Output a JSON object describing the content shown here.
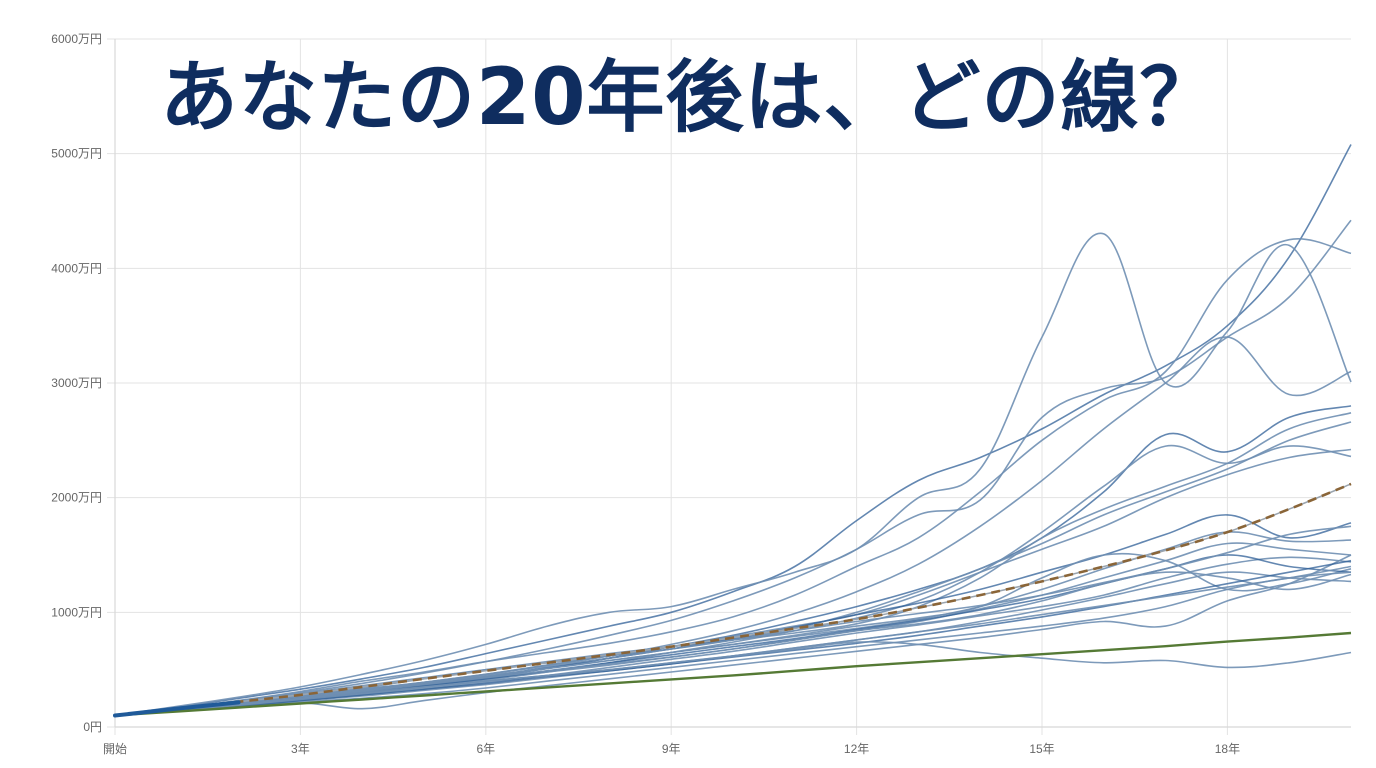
{
  "title": "あなたの20年後は、どの線？",
  "colors": {
    "title": "#0f2d5f",
    "simulation_line": "#6f8fb3",
    "simulation_line_dark": "#2f5f97",
    "median_dashed": "#8a6538",
    "median_under": "#9aa4ae",
    "principal_line": "#557a35",
    "grid": "#e3e3e3",
    "tick_text": "#666666"
  },
  "chart_data": {
    "type": "line",
    "title": "あなたの20年後は、どの線？",
    "xlabel": "",
    "ylabel": "",
    "x": [
      0,
      1,
      2,
      3,
      4,
      5,
      6,
      7,
      8,
      9,
      10,
      11,
      12,
      13,
      14,
      15,
      16,
      17,
      18,
      19,
      20
    ],
    "x_tick_labels": [
      {
        "x": 0,
        "label": "開始"
      },
      {
        "x": 3,
        "label": "3年"
      },
      {
        "x": 6,
        "label": "6年"
      },
      {
        "x": 9,
        "label": "9年"
      },
      {
        "x": 12,
        "label": "12年"
      },
      {
        "x": 15,
        "label": "15年"
      },
      {
        "x": 18,
        "label": "18年"
      }
    ],
    "y_tick_labels": [
      {
        "y": 0,
        "label": "0円"
      },
      {
        "y": 1000,
        "label": "1000万円"
      },
      {
        "y": 2000,
        "label": "2000万円"
      },
      {
        "y": 3000,
        "label": "3000万円"
      },
      {
        "y": 4000,
        "label": "4000万円"
      },
      {
        "y": 5000,
        "label": "5000万円"
      },
      {
        "y": 6000,
        "label": "6000万円"
      }
    ],
    "xlim": [
      0,
      20
    ],
    "ylim": [
      0,
      6000
    ],
    "y_unit": "万円",
    "grid": true,
    "legend": null,
    "series": [
      {
        "name": "sim-01",
        "style": "simulation",
        "values": [
          100,
          170,
          250,
          330,
          420,
          520,
          640,
          760,
          880,
          1000,
          1180,
          1400,
          1800,
          2150,
          2350,
          2600,
          2900,
          3150,
          3500,
          4100,
          5080
        ]
      },
      {
        "name": "sim-02",
        "style": "simulation",
        "values": [
          100,
          180,
          260,
          350,
          460,
          580,
          720,
          880,
          1000,
          1050,
          1200,
          1350,
          1550,
          2000,
          2250,
          3400,
          4300,
          3000,
          3450,
          4200,
          3010
        ]
      },
      {
        "name": "sim-03",
        "style": "simulation",
        "values": [
          100,
          160,
          230,
          300,
          380,
          470,
          570,
          680,
          800,
          930,
          1100,
          1300,
          1550,
          1850,
          1980,
          2700,
          2950,
          3050,
          3400,
          3750,
          4420
        ]
      },
      {
        "name": "sim-04",
        "style": "simulation",
        "values": [
          100,
          160,
          230,
          310,
          400,
          480,
          570,
          650,
          730,
          830,
          960,
          1150,
          1400,
          1650,
          2050,
          2500,
          2850,
          3100,
          3900,
          4250,
          4130
        ]
      },
      {
        "name": "sim-05",
        "style": "simulation",
        "values": [
          100,
          150,
          210,
          260,
          320,
          390,
          460,
          540,
          620,
          720,
          840,
          990,
          1180,
          1420,
          1750,
          2150,
          2600,
          3000,
          3400,
          2900,
          3100
        ]
      },
      {
        "name": "sim-06",
        "style": "simulation",
        "values": [
          100,
          150,
          200,
          250,
          300,
          360,
          430,
          510,
          600,
          700,
          800,
          920,
          1050,
          1200,
          1380,
          1650,
          2050,
          2550,
          2400,
          2700,
          2800
        ]
      },
      {
        "name": "sim-07",
        "style": "simulation",
        "values": [
          100,
          150,
          210,
          270,
          340,
          420,
          500,
          570,
          640,
          700,
          760,
          820,
          900,
          1050,
          1300,
          1650,
          1900,
          2100,
          2300,
          2600,
          2740
        ]
      },
      {
        "name": "sim-08",
        "style": "simulation",
        "values": [
          100,
          160,
          220,
          290,
          360,
          430,
          500,
          560,
          620,
          680,
          760,
          860,
          1000,
          1180,
          1380,
          1600,
          1850,
          2050,
          2250,
          2500,
          2660
        ]
      },
      {
        "name": "sim-09",
        "style": "simulation",
        "values": [
          100,
          150,
          200,
          250,
          310,
          380,
          460,
          540,
          620,
          700,
          790,
          880,
          980,
          1150,
          1350,
          1550,
          1750,
          2000,
          2200,
          2350,
          2420
        ]
      },
      {
        "name": "sim-10",
        "style": "simulation",
        "values": [
          100,
          150,
          200,
          240,
          290,
          350,
          410,
          480,
          560,
          650,
          740,
          840,
          950,
          1100,
          1350,
          1700,
          2100,
          2450,
          2300,
          2450,
          2360
        ]
      },
      {
        "name": "sim-11",
        "style": "simulation",
        "values": [
          100,
          140,
          190,
          240,
          300,
          370,
          440,
          520,
          600,
          680,
          770,
          870,
          980,
          1080,
          1200,
          1350,
          1500,
          1680,
          1850,
          1650,
          1780
        ]
      },
      {
        "name": "sim-12",
        "style": "simulation",
        "values": [
          100,
          150,
          210,
          270,
          330,
          390,
          450,
          510,
          580,
          650,
          720,
          790,
          860,
          940,
          1050,
          1200,
          1380,
          1550,
          1700,
          1620,
          1630
        ]
      },
      {
        "name": "sim-13",
        "style": "simulation",
        "values": [
          100,
          150,
          200,
          250,
          300,
          360,
          420,
          480,
          540,
          610,
          680,
          760,
          840,
          920,
          1030,
          1150,
          1300,
          1450,
          1600,
          1550,
          1500
        ]
      },
      {
        "name": "sim-14",
        "style": "simulation",
        "values": [
          100,
          140,
          190,
          230,
          280,
          330,
          390,
          450,
          520,
          590,
          660,
          740,
          820,
          890,
          970,
          1050,
          1150,
          1300,
          1420,
          1480,
          1440
        ]
      },
      {
        "name": "sim-15",
        "style": "simulation",
        "values": [
          100,
          150,
          200,
          260,
          320,
          380,
          440,
          510,
          580,
          650,
          720,
          800,
          880,
          950,
          1050,
          1300,
          1500,
          1450,
          1200,
          1250,
          1380
        ]
      },
      {
        "name": "sim-16",
        "style": "simulation",
        "values": [
          100,
          150,
          200,
          250,
          300,
          360,
          420,
          490,
          560,
          630,
          700,
          770,
          850,
          930,
          1020,
          1120,
          1250,
          1380,
          1500,
          1400,
          1350
        ]
      },
      {
        "name": "sim-17",
        "style": "simulation",
        "values": [
          100,
          150,
          190,
          230,
          270,
          320,
          370,
          430,
          490,
          550,
          620,
          690,
          760,
          830,
          920,
          1020,
          1130,
          1250,
          1350,
          1300,
          1270
        ]
      },
      {
        "name": "sim-18",
        "style": "simulation",
        "values": [
          100,
          140,
          180,
          220,
          250,
          290,
          340,
          400,
          460,
          520,
          580,
          640,
          700,
          760,
          820,
          880,
          950,
          1050,
          1200,
          1300,
          1350
        ]
      },
      {
        "name": "sim-19",
        "style": "simulation",
        "values": [
          100,
          140,
          170,
          210,
          160,
          230,
          300,
          360,
          420,
          480,
          540,
          600,
          660,
          720,
          780,
          850,
          920,
          880,
          1100,
          1250,
          1500
        ]
      },
      {
        "name": "sim-20",
        "style": "simulation",
        "values": [
          100,
          150,
          200,
          250,
          310,
          370,
          430,
          490,
          550,
          610,
          680,
          760,
          840,
          900,
          980,
          1100,
          1250,
          1350,
          1300,
          1200,
          1330
        ]
      },
      {
        "name": "sim-21",
        "style": "simulation",
        "values": [
          100,
          140,
          180,
          230,
          280,
          330,
          380,
          440,
          490,
          550,
          610,
          670,
          730,
          800,
          880,
          960,
          1050,
          1150,
          1250,
          1350,
          1450
        ]
      },
      {
        "name": "sim-22",
        "style": "simulation",
        "values": [
          100,
          140,
          190,
          240,
          290,
          340,
          400,
          450,
          500,
          560,
          620,
          680,
          740,
          720,
          650,
          600,
          560,
          580,
          520,
          560,
          650
        ]
      },
      {
        "name": "sim-23",
        "style": "simulation",
        "values": [
          100,
          150,
          210,
          270,
          330,
          390,
          460,
          530,
          600,
          680,
          760,
          840,
          920,
          990,
          1060,
          1150,
          1260,
          1380,
          1520,
          1680,
          1750
        ]
      },
      {
        "name": "sim-24",
        "style": "simulation",
        "values": [
          100,
          150,
          200,
          250,
          300,
          350,
          400,
          450,
          500,
          560,
          620,
          690,
          760,
          830,
          900,
          980,
          1060,
          1140,
          1220,
          1300,
          1400
        ]
      },
      {
        "name": "median",
        "style": "dashed",
        "values": [
          100,
          160,
          220,
          280,
          350,
          420,
          490,
          560,
          630,
          700,
          780,
          860,
          940,
          1040,
          1150,
          1270,
          1400,
          1540,
          1700,
          1900,
          2120
        ]
      },
      {
        "name": "principal",
        "style": "principal",
        "values": [
          100,
          135,
          170,
          205,
          240,
          275,
          310,
          345,
          380,
          415,
          450,
          490,
          530,
          565,
          600,
          635,
          670,
          705,
          745,
          780,
          820
        ]
      }
    ]
  }
}
